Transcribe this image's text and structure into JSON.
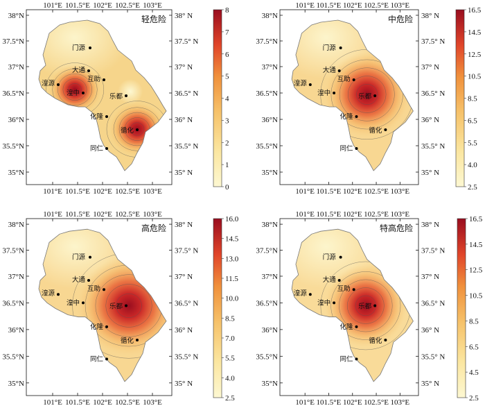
{
  "longitude_ticks": [
    "101°E",
    "101.5°E",
    "102°E",
    "102.5°E",
    "103°E"
  ],
  "latitude_ticks_left": [
    "38°N",
    "37.5°N",
    "37°N",
    "36.5°N",
    "36°N",
    "35.5°N",
    "35°N"
  ],
  "latitude_ticks_right": [
    "38° N",
    "37.5° N",
    "37° N",
    "36.5° N",
    "36° N",
    "35.5° N",
    "35° N"
  ],
  "cities": [
    "门源",
    "大通",
    "互助",
    "湟源",
    "湟中",
    "乐都",
    "化隆",
    "循化",
    "同仁"
  ],
  "panels": [
    {
      "title": "轻危险",
      "colorbar_ticks": [
        "0",
        "1",
        "2",
        "3",
        "4",
        "5",
        "6",
        "7",
        "8"
      ],
      "hotspots": [
        "湟中",
        "循化"
      ]
    },
    {
      "title": "中危险",
      "colorbar_ticks": [
        "2.5",
        "4.0",
        "5.5",
        "6.5",
        "8.5",
        "10.5",
        "12.5",
        "14.5",
        "16.5"
      ],
      "hotspots": [
        "乐都"
      ]
    },
    {
      "title": "高危险",
      "colorbar_ticks": [
        "2.5",
        "4.0",
        "5.5",
        "7.0",
        "8.5",
        "10.0",
        "11.5",
        "13.0",
        "14.5",
        "16.0"
      ],
      "hotspots": [
        "乐都"
      ]
    },
    {
      "title": "特高危险",
      "colorbar_ticks": [
        "2.5",
        "4.5",
        "6.5",
        "8.5",
        "10.5",
        "12.5",
        "14.5",
        "16.5"
      ],
      "hotspots": [
        "乐都"
      ]
    }
  ],
  "colors": {
    "low": "#fdf8d2",
    "mid": "#f5b04c",
    "high": "#e0452a",
    "max": "#990d1f"
  }
}
